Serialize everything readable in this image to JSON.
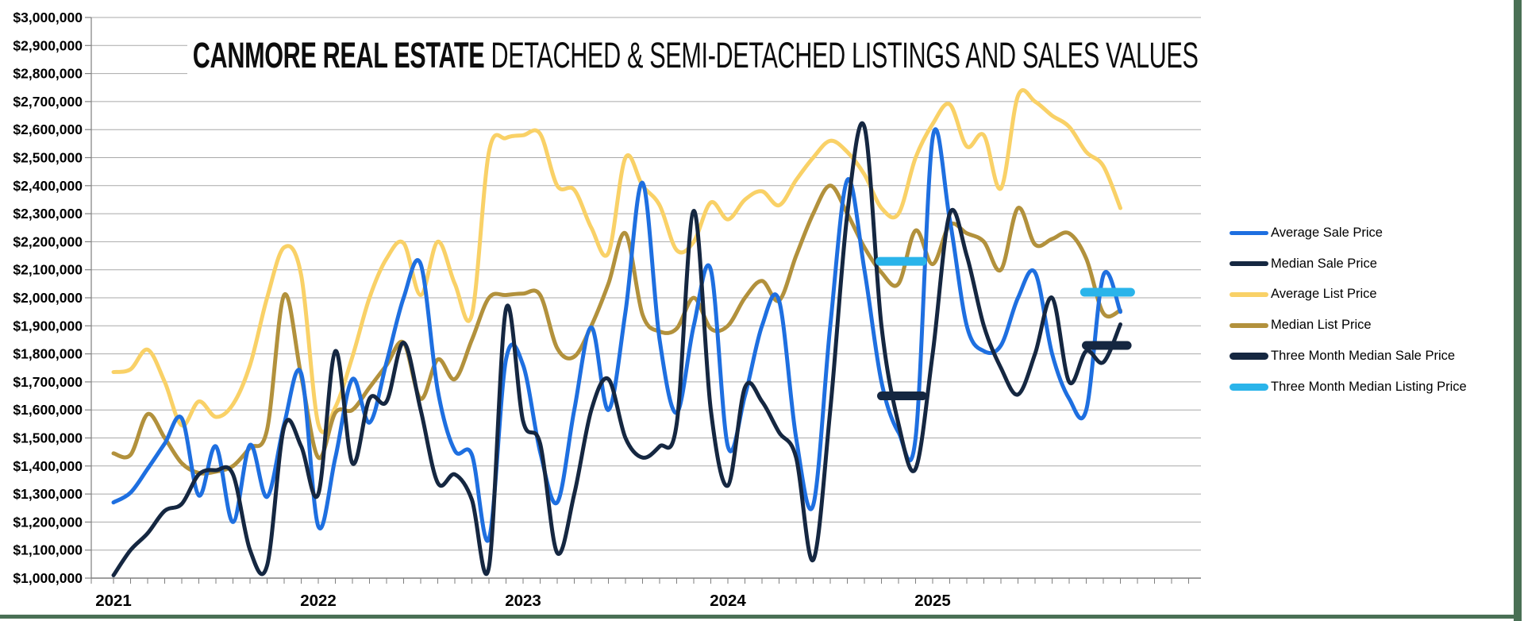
{
  "title": {
    "emphasis": "CANMORE REAL ESTATE",
    "rest": " DETACHED & SEMI-DETACHED LISTINGS AND SALES VALUES"
  },
  "colors": {
    "average_sale": "#1e6fe0",
    "median_sale": "#152741",
    "average_list": "#f9d167",
    "median_list": "#b2913c",
    "three_month_median_sale": "#152741",
    "three_month_median_listing": "#2ab4ea",
    "gridline": "#a9a9a9",
    "axis": "#7f7f7f",
    "text": "#000000",
    "frame_green": "#4a7055",
    "background": "#ffffff"
  },
  "chart_data": {
    "type": "line",
    "title": "CANMORE REAL ESTATE DETACHED & SEMI-DETACHED LISTINGS AND SALES VALUES",
    "frequency": "monthly",
    "x_start": "2021-01",
    "x_end": "2025-12",
    "grid": true,
    "legend_position": "right",
    "x_axis": {
      "tick_labels": [
        "2021",
        "2022",
        "2023",
        "2024",
        "2025"
      ]
    },
    "y_axis": {
      "min": 1000000,
      "max": 3000000,
      "step": 100000,
      "tick_labels": [
        "$3,000,000",
        "$2,900,000",
        "$2,800,000",
        "$2,700,000",
        "$2,600,000",
        "$2,500,000",
        "$2,400,000",
        "$2,300,000",
        "$2,200,000",
        "$2,100,000",
        "$2,000,000",
        "$1,900,000",
        "$1,800,000",
        "$1,700,000",
        "$1,600,000",
        "$1,500,000",
        "$1,400,000",
        "$1,300,000",
        "$1,200,000",
        "$1,100,000",
        "$1,000,000"
      ]
    },
    "draw_order": [
      2,
      3,
      0,
      1
    ],
    "series": [
      {
        "name": "Average Sale Price",
        "color": "#1e6fe0",
        "stroke_width": 5,
        "values": [
          1270000,
          1305000,
          1390000,
          1480000,
          1570000,
          1295000,
          1470000,
          1200000,
          1475000,
          1290000,
          1550000,
          1730000,
          1185000,
          1430000,
          1710000,
          1555000,
          1770000,
          2000000,
          2120000,
          1670000,
          1455000,
          1440000,
          1140000,
          1780000,
          1760000,
          1450000,
          1270000,
          1600000,
          1895000,
          1600000,
          1950000,
          2410000,
          1850000,
          1590000,
          1900000,
          2100000,
          1470000,
          1650000,
          1900000,
          1990000,
          1500000,
          1260000,
          1900000,
          2420000,
          2100000,
          1700000,
          1520000,
          1500000,
          2570000,
          2280000,
          1900000,
          1810000,
          1830000,
          2000000,
          2090000,
          1800000,
          1640000,
          1600000,
          2080000,
          1950000
        ]
      },
      {
        "name": "Median Sale Price",
        "color": "#152741",
        "stroke_width": 5,
        "values": [
          1010000,
          1100000,
          1160000,
          1240000,
          1265000,
          1370000,
          1385000,
          1370000,
          1100000,
          1045000,
          1540000,
          1470000,
          1300000,
          1810000,
          1410000,
          1640000,
          1630000,
          1840000,
          1600000,
          1340000,
          1370000,
          1280000,
          1040000,
          1960000,
          1560000,
          1480000,
          1090000,
          1300000,
          1600000,
          1710000,
          1500000,
          1430000,
          1470000,
          1550000,
          2310000,
          1600000,
          1330000,
          1680000,
          1630000,
          1520000,
          1430000,
          1065000,
          1600000,
          2300000,
          2610000,
          1900000,
          1550000,
          1390000,
          1800000,
          2300000,
          2150000,
          1900000,
          1750000,
          1655000,
          1800000,
          2000000,
          1700000,
          1810000,
          1770000,
          1905000
        ]
      },
      {
        "name": "Average List Price",
        "color": "#f9d167",
        "stroke_width": 5,
        "values": [
          1735000,
          1745000,
          1815000,
          1700000,
          1545000,
          1630000,
          1575000,
          1620000,
          1760000,
          2000000,
          2180000,
          2080000,
          1550000,
          1610000,
          1790000,
          2000000,
          2140000,
          2195000,
          2010000,
          2200000,
          2050000,
          1940000,
          2520000,
          2570000,
          2580000,
          2585000,
          2400000,
          2385000,
          2250000,
          2160000,
          2500000,
          2400000,
          2330000,
          2170000,
          2200000,
          2340000,
          2280000,
          2350000,
          2380000,
          2330000,
          2420000,
          2500000,
          2560000,
          2520000,
          2440000,
          2320000,
          2300000,
          2500000,
          2620000,
          2690000,
          2540000,
          2580000,
          2390000,
          2720000,
          2700000,
          2650000,
          2610000,
          2520000,
          2470000,
          2320000
        ]
      },
      {
        "name": "Median List Price",
        "color": "#b2913c",
        "stroke_width": 5,
        "values": [
          1445000,
          1440000,
          1585000,
          1500000,
          1410000,
          1375000,
          1380000,
          1400000,
          1465000,
          1530000,
          2010000,
          1720000,
          1430000,
          1590000,
          1600000,
          1680000,
          1760000,
          1840000,
          1640000,
          1780000,
          1710000,
          1850000,
          2000000,
          2010000,
          2015000,
          2010000,
          1820000,
          1790000,
          1900000,
          2050000,
          2230000,
          1940000,
          1880000,
          1890000,
          2000000,
          1890000,
          1900000,
          2000000,
          2060000,
          1990000,
          2150000,
          2300000,
          2400000,
          2300000,
          2180000,
          2090000,
          2050000,
          2240000,
          2120000,
          2260000,
          2230000,
          2200000,
          2100000,
          2320000,
          2190000,
          2210000,
          2230000,
          2140000,
          1945000,
          1955000
        ]
      }
    ],
    "segment_series": [
      {
        "name": "Three Month Median Sale Price",
        "color": "#152741",
        "stroke_width": 11,
        "segments": [
          {
            "start_month": 45.0,
            "end_month": 47.4,
            "value": 1650000
          },
          {
            "start_month": 57.0,
            "end_month": 59.4,
            "value": 1830000
          }
        ]
      },
      {
        "name": "Three Month Median Listing Price",
        "color": "#2ab4ea",
        "stroke_width": 11,
        "segments": [
          {
            "start_month": 44.9,
            "end_month": 47.4,
            "value": 2130000
          },
          {
            "start_month": 56.9,
            "end_month": 59.6,
            "value": 2020000
          }
        ]
      }
    ],
    "legend_entries": [
      {
        "label": "Average Sale Price",
        "color": "#1e6fe0",
        "thick": false
      },
      {
        "label": "Median Sale Price",
        "color": "#152741",
        "thick": false
      },
      {
        "label": "Average List Price",
        "color": "#f9d167",
        "thick": false
      },
      {
        "label": "Median List Price",
        "color": "#b2913c",
        "thick": false
      },
      {
        "label": "Three Month Median Sale Price",
        "color": "#152741",
        "thick": true
      },
      {
        "label": "Three Month Median Listing Price",
        "color": "#2ab4ea",
        "thick": true
      }
    ]
  }
}
